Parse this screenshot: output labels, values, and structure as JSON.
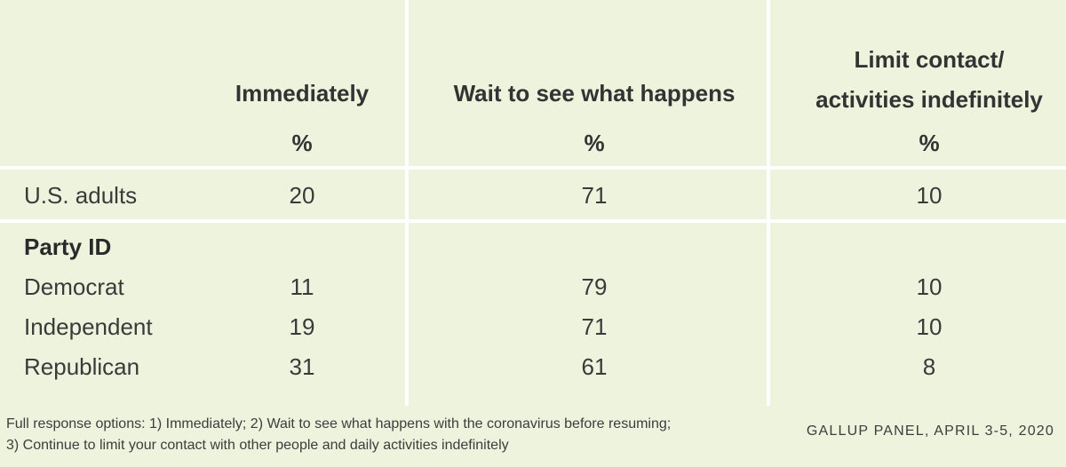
{
  "chart_data": {
    "type": "table",
    "columns": [
      {
        "label_lines": [
          "Immediately"
        ],
        "unit": "%"
      },
      {
        "label_lines": [
          "Wait to see what happens"
        ],
        "unit": "%"
      },
      {
        "label_lines": [
          "Limit contact/",
          "activities indefinitely"
        ],
        "unit": "%"
      }
    ],
    "rows": [
      {
        "label": "U.S. adults",
        "values": [
          "20",
          "71",
          "10"
        ],
        "bold": false
      },
      {
        "label": "Party ID",
        "values": [
          "",
          "",
          ""
        ],
        "bold": true
      },
      {
        "label": "Democrat",
        "values": [
          "11",
          "79",
          "10"
        ],
        "bold": false
      },
      {
        "label": "Independent",
        "values": [
          "19",
          "71",
          "10"
        ],
        "bold": false
      },
      {
        "label": "Republican",
        "values": [
          "31",
          "61",
          "8"
        ],
        "bold": false
      }
    ]
  },
  "footer": {
    "note_line1": "Full response options: 1) Immediately; 2) Wait to see what happens with the coronavirus before resuming;",
    "note_line2": "3) Continue to limit your contact with other people and daily activities indefinitely",
    "source": "GALLUP PANEL, APRIL 3-5, 2020"
  }
}
